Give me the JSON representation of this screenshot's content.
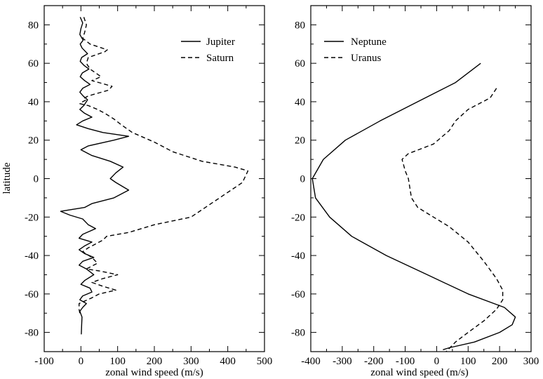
{
  "chart_data": [
    {
      "type": "line",
      "xlabel": "zonal wind speed (m/s)",
      "ylabel": "latitude",
      "xlim": [
        -100,
        500
      ],
      "ylim": [
        -90,
        90
      ],
      "xticks": [
        -100,
        0,
        100,
        200,
        300,
        400,
        500
      ],
      "yticks": [
        -80,
        -60,
        -40,
        -20,
        0,
        20,
        40,
        60,
        80
      ],
      "legend_position": "top-right",
      "series": [
        {
          "name": "Jupiter",
          "style": "solid",
          "points": [
            [
              -2,
              84
            ],
            [
              5,
              81
            ],
            [
              0,
              78
            ],
            [
              -3,
              75
            ],
            [
              6,
              72
            ],
            [
              -2,
              70
            ],
            [
              3,
              68
            ],
            [
              18,
              65
            ],
            [
              2,
              63
            ],
            [
              -2,
              61
            ],
            [
              8,
              59
            ],
            [
              22,
              57
            ],
            [
              4,
              55
            ],
            [
              -2,
              53
            ],
            [
              10,
              51
            ],
            [
              25,
              49
            ],
            [
              5,
              47
            ],
            [
              -3,
              45
            ],
            [
              6,
              43
            ],
            [
              18,
              41
            ],
            [
              8,
              38
            ],
            [
              -3,
              36
            ],
            [
              10,
              34
            ],
            [
              30,
              32
            ],
            [
              5,
              30
            ],
            [
              -12,
              28
            ],
            [
              20,
              26
            ],
            [
              60,
              24
            ],
            [
              130,
              22
            ],
            [
              90,
              20
            ],
            [
              20,
              17
            ],
            [
              0,
              15
            ],
            [
              30,
              12
            ],
            [
              80,
              9
            ],
            [
              115,
              6
            ],
            [
              95,
              3
            ],
            [
              80,
              0
            ],
            [
              95,
              -2
            ],
            [
              130,
              -6
            ],
            [
              90,
              -10
            ],
            [
              30,
              -13
            ],
            [
              10,
              -15
            ],
            [
              -55,
              -17
            ],
            [
              -30,
              -19
            ],
            [
              5,
              -21
            ],
            [
              20,
              -24
            ],
            [
              40,
              -26
            ],
            [
              5,
              -29
            ],
            [
              -5,
              -31
            ],
            [
              30,
              -33
            ],
            [
              10,
              -35
            ],
            [
              -5,
              -37
            ],
            [
              10,
              -39
            ],
            [
              35,
              -41
            ],
            [
              5,
              -43
            ],
            [
              -5,
              -45
            ],
            [
              15,
              -47
            ],
            [
              35,
              -50
            ],
            [
              10,
              -53
            ],
            [
              0,
              -55
            ],
            [
              25,
              -57
            ],
            [
              30,
              -59
            ],
            [
              5,
              -61
            ],
            [
              -3,
              -63
            ],
            [
              15,
              -65
            ],
            [
              5,
              -67
            ],
            [
              -3,
              -69
            ],
            [
              3,
              -72
            ],
            [
              2,
              -76
            ],
            [
              1,
              -81
            ]
          ]
        },
        {
          "name": "Saturn",
          "style": "dashed",
          "points": [
            [
              8,
              84
            ],
            [
              15,
              80
            ],
            [
              10,
              76
            ],
            [
              5,
              73
            ],
            [
              25,
              70
            ],
            [
              72,
              67
            ],
            [
              65,
              66
            ],
            [
              20,
              63
            ],
            [
              15,
              60
            ],
            [
              25,
              57
            ],
            [
              55,
              53
            ],
            [
              30,
              51
            ],
            [
              85,
              48
            ],
            [
              75,
              46
            ],
            [
              20,
              43
            ],
            [
              10,
              42
            ],
            [
              15,
              41
            ],
            [
              5,
              40
            ],
            [
              -3,
              39
            ],
            [
              20,
              38
            ],
            [
              45,
              36
            ],
            [
              65,
              34
            ],
            [
              90,
              31
            ],
            [
              110,
              28
            ],
            [
              140,
              24
            ],
            [
              200,
              19
            ],
            [
              250,
              14
            ],
            [
              330,
              9
            ],
            [
              420,
              6
            ],
            [
              455,
              4
            ],
            [
              450,
              2
            ],
            [
              440,
              -2
            ],
            [
              300,
              -20
            ],
            [
              200,
              -24
            ],
            [
              130,
              -28
            ],
            [
              70,
              -30
            ],
            [
              60,
              -32
            ],
            [
              40,
              -34
            ],
            [
              20,
              -36
            ],
            [
              5,
              -38
            ],
            [
              30,
              -41
            ],
            [
              45,
              -44
            ],
            [
              15,
              -47
            ],
            [
              50,
              -48
            ],
            [
              100,
              -50
            ],
            [
              60,
              -52
            ],
            [
              30,
              -54
            ],
            [
              60,
              -56
            ],
            [
              95,
              -58
            ],
            [
              50,
              -60
            ],
            [
              30,
              -62
            ],
            [
              -5,
              -65
            ],
            [
              -5,
              -68
            ],
            [
              -3,
              -70
            ]
          ]
        }
      ]
    },
    {
      "type": "line",
      "xlabel": "zonal wind speed (m/s)",
      "ylabel": "",
      "xlim": [
        -400,
        300
      ],
      "ylim": [
        -90,
        90
      ],
      "xticks": [
        -400,
        -300,
        -200,
        -100,
        0,
        100,
        200,
        300
      ],
      "yticks": [
        -80,
        -60,
        -40,
        -20,
        0,
        20,
        40,
        60,
        80
      ],
      "legend_position": "top-left",
      "series": [
        {
          "name": "Neptune",
          "style": "solid",
          "points": [
            [
              140,
              60
            ],
            [
              60,
              50
            ],
            [
              -60,
              40
            ],
            [
              -180,
              30
            ],
            [
              -290,
              20
            ],
            [
              -360,
              10
            ],
            [
              -395,
              0
            ],
            [
              -385,
              -10
            ],
            [
              -340,
              -20
            ],
            [
              -270,
              -30
            ],
            [
              -160,
              -40
            ],
            [
              -30,
              -50
            ],
            [
              100,
              -60
            ],
            [
              215,
              -67
            ],
            [
              250,
              -72
            ],
            [
              240,
              -76
            ],
            [
              200,
              -80
            ],
            [
              120,
              -85
            ],
            [
              40,
              -88
            ],
            [
              20,
              -89
            ]
          ]
        },
        {
          "name": "Uranus",
          "style": "dashed",
          "points": [
            [
              190,
              47
            ],
            [
              170,
              42
            ],
            [
              100,
              36
            ],
            [
              60,
              30
            ],
            [
              40,
              25
            ],
            [
              -10,
              18
            ],
            [
              -90,
              13
            ],
            [
              -110,
              10
            ],
            [
              -100,
              4
            ],
            [
              -90,
              0
            ],
            [
              -85,
              -5
            ],
            [
              -80,
              -10
            ],
            [
              -60,
              -15
            ],
            [
              -10,
              -20
            ],
            [
              40,
              -25
            ],
            [
              100,
              -33
            ],
            [
              150,
              -43
            ],
            [
              190,
              -52
            ],
            [
              210,
              -58
            ],
            [
              210,
              -63
            ],
            [
              190,
              -68
            ],
            [
              150,
              -74
            ],
            [
              100,
              -80
            ],
            [
              60,
              -85
            ],
            [
              30,
              -90
            ]
          ]
        }
      ]
    }
  ]
}
